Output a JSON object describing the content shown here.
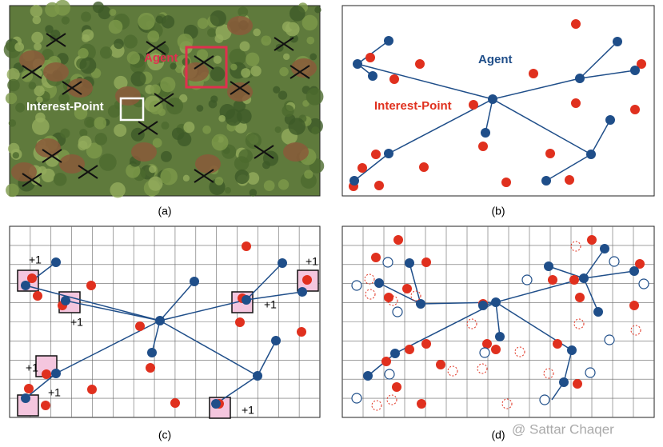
{
  "panels": [
    {
      "caption": "(a)",
      "labels": {
        "agent": "Agent",
        "interest_point": "Interest-Point"
      }
    },
    {
      "caption": "(b)",
      "labels": {
        "agent": "Agent",
        "interest_point": "Interest-Point"
      }
    },
    {
      "caption": "(c)",
      "rewards": [
        "+1",
        "+1",
        "+1",
        "+1",
        "+1",
        "+1",
        "+1"
      ]
    },
    {
      "caption": "(d)"
    }
  ],
  "watermark": "@ Sattar Chaqer"
}
